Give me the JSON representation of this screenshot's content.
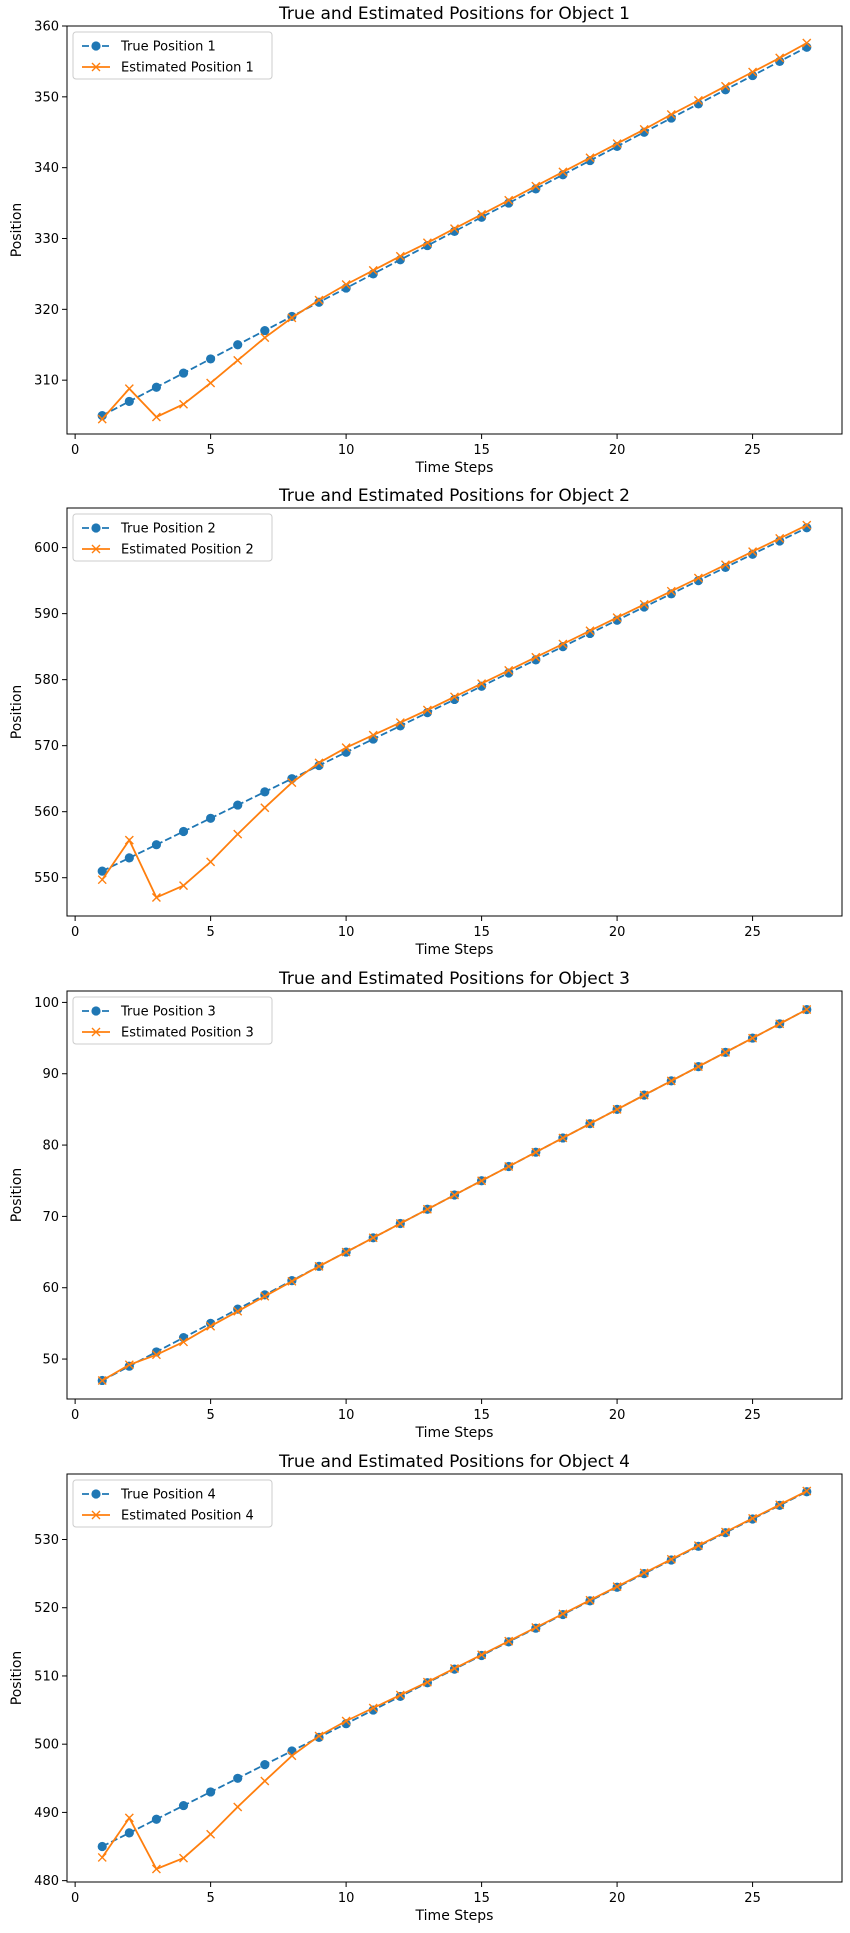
{
  "colors": {
    "true_series": "#1f77b4",
    "estimated_series": "#ff7f0e",
    "axes": "#000000",
    "legend_border": "#cccccc"
  },
  "chart_data": [
    {
      "type": "line",
      "title": "True and Estimated Positions for Object 1",
      "xlabel": "Time Steps",
      "ylabel": "Position",
      "xlim": [
        -0.3,
        28.3
      ],
      "ylim": [
        302.4,
        360.0
      ],
      "xticks": [
        0,
        5,
        10,
        15,
        20,
        25
      ],
      "yticks": [
        310,
        320,
        330,
        340,
        350,
        360
      ],
      "grid": false,
      "legend_position": "upper-left",
      "x": [
        1,
        2,
        3,
        4,
        5,
        6,
        7,
        8,
        9,
        10,
        11,
        12,
        13,
        14,
        15,
        16,
        17,
        18,
        19,
        20,
        21,
        22,
        23,
        24,
        25,
        26,
        27
      ],
      "series": [
        {
          "name": "True Position 1",
          "style": "dashed-circle",
          "values": [
            305,
            307,
            309,
            311,
            313,
            315,
            317,
            319,
            321,
            323,
            325,
            327,
            329,
            331,
            333,
            335,
            337,
            339,
            341,
            343,
            345,
            347,
            349,
            351,
            353,
            355,
            357
          ]
        },
        {
          "name": "Estimated Position 1",
          "style": "solid-x",
          "values": [
            304.5,
            308.8,
            304.8,
            306.6,
            309.6,
            312.8,
            316.0,
            318.8,
            321.3,
            323.5,
            325.5,
            327.5,
            329.4,
            331.4,
            333.4,
            335.4,
            337.4,
            339.4,
            341.4,
            343.4,
            345.4,
            347.5,
            349.5,
            351.5,
            353.5,
            355.5,
            357.6
          ]
        }
      ]
    },
    {
      "type": "line",
      "title": "True and Estimated Positions for Object 2",
      "xlabel": "Time Steps",
      "ylabel": "Position",
      "xlim": [
        -0.3,
        28.3
      ],
      "ylim": [
        544.2,
        606.0
      ],
      "xticks": [
        0,
        5,
        10,
        15,
        20,
        25
      ],
      "yticks": [
        550,
        560,
        570,
        580,
        590,
        600
      ],
      "grid": false,
      "legend_position": "upper-left",
      "x": [
        1,
        2,
        3,
        4,
        5,
        6,
        7,
        8,
        9,
        10,
        11,
        12,
        13,
        14,
        15,
        16,
        17,
        18,
        19,
        20,
        21,
        22,
        23,
        24,
        25,
        26,
        27
      ],
      "series": [
        {
          "name": "True Position 2",
          "style": "dashed-circle",
          "values": [
            551,
            553,
            555,
            557,
            559,
            561,
            563,
            565,
            567,
            569,
            571,
            573,
            575,
            577,
            579,
            581,
            583,
            585,
            587,
            589,
            591,
            593,
            595,
            597,
            599,
            601,
            603
          ]
        },
        {
          "name": "Estimated Position 2",
          "style": "solid-x",
          "values": [
            549.7,
            555.7,
            547.0,
            548.8,
            552.4,
            556.6,
            560.6,
            564.4,
            567.4,
            569.7,
            571.6,
            573.5,
            575.4,
            577.4,
            579.4,
            581.4,
            583.4,
            585.4,
            587.4,
            589.4,
            591.4,
            593.4,
            595.4,
            597.4,
            599.4,
            601.4,
            603.4
          ]
        }
      ]
    },
    {
      "type": "line",
      "title": "True and Estimated Positions for Object 3",
      "xlabel": "Time Steps",
      "ylabel": "Position",
      "xlim": [
        -0.3,
        28.3
      ],
      "ylim": [
        44.4,
        101.6
      ],
      "xticks": [
        0,
        5,
        10,
        15,
        20,
        25
      ],
      "yticks": [
        50,
        60,
        70,
        80,
        90,
        100
      ],
      "grid": false,
      "legend_position": "upper-left",
      "x": [
        1,
        2,
        3,
        4,
        5,
        6,
        7,
        8,
        9,
        10,
        11,
        12,
        13,
        14,
        15,
        16,
        17,
        18,
        19,
        20,
        21,
        22,
        23,
        24,
        25,
        26,
        27
      ],
      "series": [
        {
          "name": "True Position 3",
          "style": "dashed-circle",
          "values": [
            47,
            49,
            51,
            53,
            55,
            57,
            59,
            61,
            63,
            65,
            67,
            69,
            71,
            73,
            75,
            77,
            79,
            81,
            83,
            85,
            87,
            89,
            91,
            93,
            95,
            97,
            99
          ]
        },
        {
          "name": "Estimated Position 3",
          "style": "solid-x",
          "values": [
            47.0,
            49.2,
            50.6,
            52.4,
            54.6,
            56.7,
            58.8,
            60.9,
            63.0,
            65.0,
            67.0,
            69.0,
            71.0,
            73.0,
            75.0,
            77.0,
            79.0,
            81.0,
            83.0,
            85.0,
            87.0,
            89.0,
            91.0,
            93.0,
            95.0,
            97.0,
            99.0
          ]
        }
      ]
    },
    {
      "type": "line",
      "title": "True and Estimated Positions for Object 4",
      "xlabel": "Time Steps",
      "ylabel": "Position",
      "xlim": [
        -0.3,
        28.3
      ],
      "ylim": [
        479.8,
        539.6
      ],
      "xticks": [
        0,
        5,
        10,
        15,
        20,
        25
      ],
      "yticks": [
        480,
        490,
        500,
        510,
        520,
        530
      ],
      "grid": false,
      "legend_position": "upper-left",
      "x": [
        1,
        2,
        3,
        4,
        5,
        6,
        7,
        8,
        9,
        10,
        11,
        12,
        13,
        14,
        15,
        16,
        17,
        18,
        19,
        20,
        21,
        22,
        23,
        24,
        25,
        26,
        27
      ],
      "series": [
        {
          "name": "True Position 4",
          "style": "dashed-circle",
          "values": [
            485,
            487,
            489,
            491,
            493,
            495,
            497,
            499,
            501,
            503,
            505,
            507,
            509,
            511,
            513,
            515,
            517,
            519,
            521,
            523,
            525,
            527,
            529,
            531,
            533,
            535,
            537
          ]
        },
        {
          "name": "Estimated Position 4",
          "style": "solid-x",
          "values": [
            483.4,
            489.2,
            481.7,
            483.3,
            486.8,
            490.8,
            494.6,
            498.3,
            501.2,
            503.4,
            505.3,
            507.2,
            509.1,
            511.1,
            513.1,
            515.1,
            517.1,
            519.1,
            521.1,
            523.1,
            525.1,
            527.1,
            529.1,
            531.1,
            533.1,
            535.1,
            537.1
          ]
        }
      ]
    }
  ]
}
